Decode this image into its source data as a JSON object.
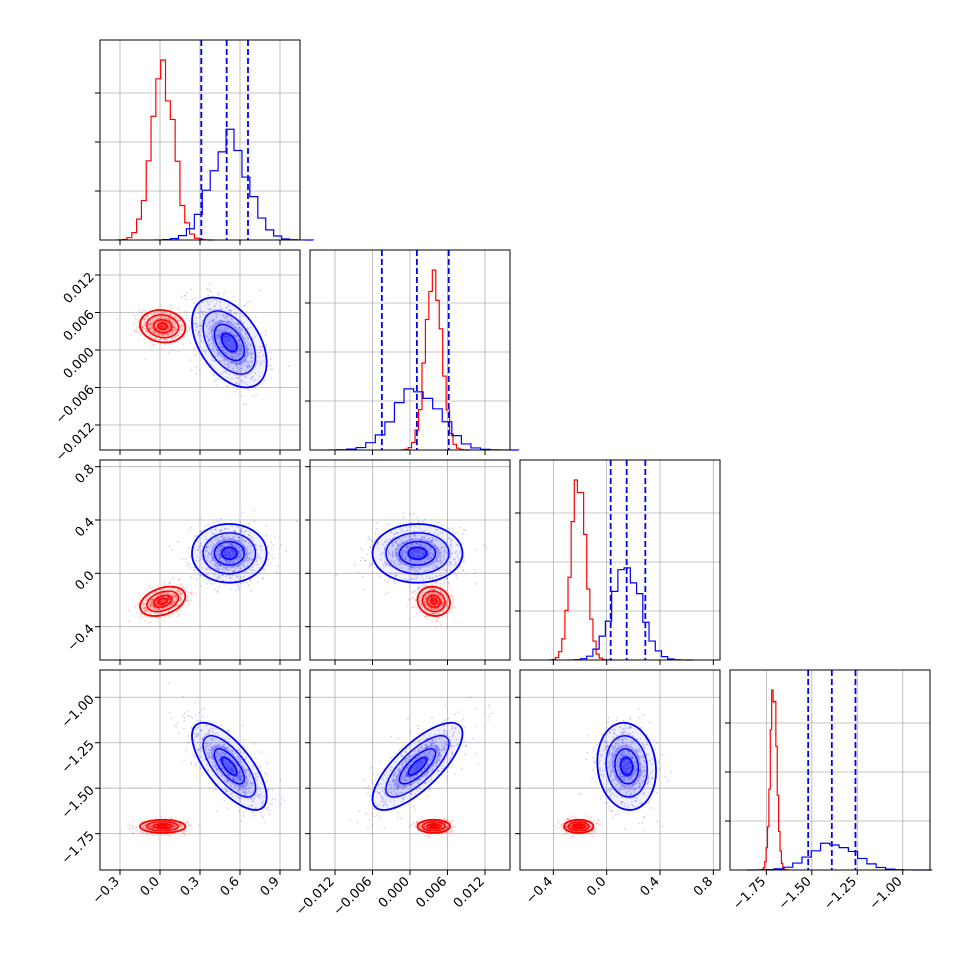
{
  "chart_data": {
    "type": "corner",
    "title": "",
    "grid": true,
    "colors": {
      "series_a": "#ff0000",
      "series_b": "#0000ff"
    },
    "parameters": [
      {
        "xlabel": "",
        "range": [
          -0.45,
          1.05
        ],
        "ticks": [
          -0.3,
          0.0,
          0.3,
          0.6,
          0.9
        ],
        "tick_labels": [
          "−0.3",
          "0.0",
          "0.3",
          "0.6",
          "0.9"
        ]
      },
      {
        "xlabel": "",
        "range": [
          -0.016,
          0.016
        ],
        "ticks": [
          -0.012,
          -0.006,
          0.0,
          0.006,
          0.012
        ],
        "tick_labels": [
          "−0.012",
          "−0.006",
          "0.000",
          "0.006",
          "0.012"
        ]
      },
      {
        "xlabel": "",
        "range": [
          -0.65,
          0.85
        ],
        "ticks": [
          -0.4,
          0.0,
          0.4,
          0.8
        ],
        "tick_labels": [
          "−0.4",
          "0.0",
          "0.4",
          "0.8"
        ]
      },
      {
        "xlabel": "",
        "range": [
          -1.95,
          -0.85
        ],
        "ticks": [
          -1.75,
          -1.5,
          -1.25,
          -1.0
        ],
        "tick_labels": [
          "−1.75",
          "−1.50",
          "−1.25",
          "−1.00"
        ]
      }
    ],
    "row_tick_labels": {
      "1": [
        "−0.012",
        "−0.006",
        "0.000",
        "0.006",
        "0.012"
      ],
      "2": [
        "−0.4",
        "0.0",
        "0.4",
        "0.8"
      ],
      "3": [
        "−1.75",
        "−1.50",
        "−1.25",
        "−1.00"
      ]
    },
    "series": [
      {
        "color": "#ff0000",
        "means": [
          0.02,
          0.0038,
          -0.21,
          -1.71
        ],
        "sds": [
          0.085,
          0.0013,
          0.055,
          0.018
        ],
        "corr": [
          [
            1,
            -0.1,
            0.35,
            0.0
          ],
          [
            -0.1,
            1,
            -0.1,
            0.0
          ],
          [
            0.35,
            -0.1,
            1,
            0.0
          ],
          [
            0.0,
            0.0,
            0.0,
            1
          ]
        ],
        "hist_bins": 20
      },
      {
        "color": "#0000ff",
        "means": [
          0.52,
          0.0012,
          0.15,
          -1.38
        ],
        "sds": [
          0.14,
          0.0036,
          0.11,
          0.12
        ],
        "corr": [
          [
            1,
            -0.45,
            0.0,
            -0.7
          ],
          [
            -0.45,
            1,
            0.0,
            0.75
          ],
          [
            0.0,
            0.0,
            1,
            -0.1
          ],
          [
            -0.7,
            0.75,
            -0.1,
            1
          ]
        ],
        "hist_bins": 20,
        "quantile_lines": [
          [
            0.31,
            0.5,
            0.66
          ],
          [
            -0.0045,
            0.0011,
            0.0062
          ],
          [
            0.03,
            0.15,
            0.29
          ],
          [
            -1.52,
            -1.39,
            -1.26
          ]
        ]
      }
    ]
  }
}
